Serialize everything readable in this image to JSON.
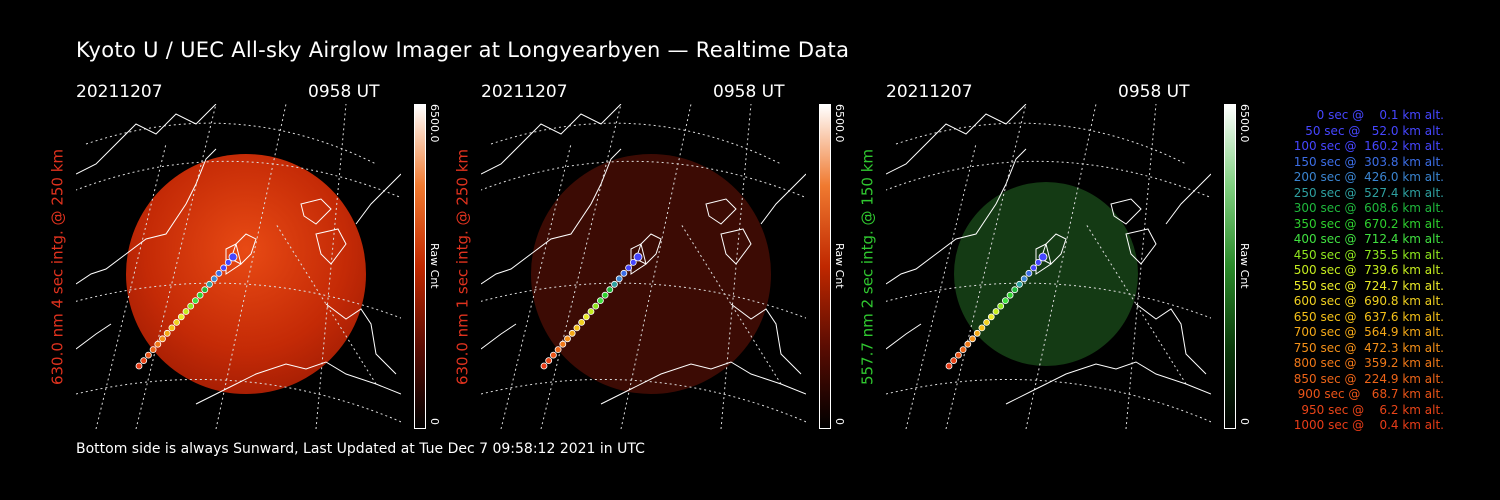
{
  "title": "Kyoto U / UEC All-sky Airglow Imager at Longyearbyen — Realtime Data",
  "footer": "Bottom side is always Sunward, Last Updated at Tue Dec  7 09:58:12 2021 in UTC",
  "panels": [
    {
      "date": "20211207",
      "time": "0958 UT",
      "ylabel": "630.0 nm 4 sec intg. @ 250 km",
      "ylabel_color": "#e0321e",
      "cbar_max": "6500.0",
      "cbar_unit": "Raw Cnt",
      "cbar_min": "0",
      "image_color": "#c42a06",
      "image_opacity": "0.95"
    },
    {
      "date": "20211207",
      "time": "0958 UT",
      "ylabel": "630.0 nm 1 sec intg. @ 250 km",
      "ylabel_color": "#e0321e",
      "cbar_max": "6500.0",
      "cbar_unit": "Raw Cnt",
      "cbar_min": "0",
      "image_color": "#4a0d05",
      "image_opacity": "0.95"
    },
    {
      "date": "20211207",
      "time": "0958 UT",
      "ylabel": "557.7 nm 2 sec intg. @ 150 km",
      "ylabel_color": "#30c830",
      "cbar_max": "6500.0",
      "cbar_unit": "Raw Cnt",
      "cbar_min": "0",
      "image_color": "#143a14",
      "image_opacity": "0.95"
    }
  ],
  "legend": [
    {
      "text": "   0 sec @    0.1 km alt.",
      "color": "#4646ff"
    },
    {
      "text": "  50 sec @   52.0 km alt.",
      "color": "#4646ff"
    },
    {
      "text": " 100 sec @  160.2 km alt.",
      "color": "#4646ff"
    },
    {
      "text": " 150 sec @  303.8 km alt.",
      "color": "#3c6ee6"
    },
    {
      "text": " 200 sec @  426.0 km alt.",
      "color": "#3a84d0"
    },
    {
      "text": " 250 sec @  527.4 km alt.",
      "color": "#2ea0a0"
    },
    {
      "text": " 300 sec @  608.6 km alt.",
      "color": "#1fb83c"
    },
    {
      "text": " 350 sec @  670.2 km alt.",
      "color": "#2ed02e"
    },
    {
      "text": " 400 sec @  712.4 km alt.",
      "color": "#40e040"
    },
    {
      "text": " 450 sec @  735.5 km alt.",
      "color": "#8ee61e"
    },
    {
      "text": " 500 sec @  739.6 km alt.",
      "color": "#c4ec1e"
    },
    {
      "text": " 550 sec @  724.7 km alt.",
      "color": "#eaea28"
    },
    {
      "text": " 600 sec @  690.8 km alt.",
      "color": "#f0d020"
    },
    {
      "text": " 650 sec @  637.6 km alt.",
      "color": "#f4c018"
    },
    {
      "text": " 700 sec @  564.9 km alt.",
      "color": "#f4a818"
    },
    {
      "text": " 750 sec @  472.3 km alt.",
      "color": "#f49018"
    },
    {
      "text": " 800 sec @  359.2 km alt.",
      "color": "#f07818"
    },
    {
      "text": " 850 sec @  224.9 km alt.",
      "color": "#ec6418"
    },
    {
      "text": " 900 sec @   68.7 km alt.",
      "color": "#ea5418"
    },
    {
      "text": " 950 sec @    6.2 km alt.",
      "color": "#e84418"
    },
    {
      "text": "1000 sec @    0.4 km alt.",
      "color": "#e83c18"
    }
  ]
}
